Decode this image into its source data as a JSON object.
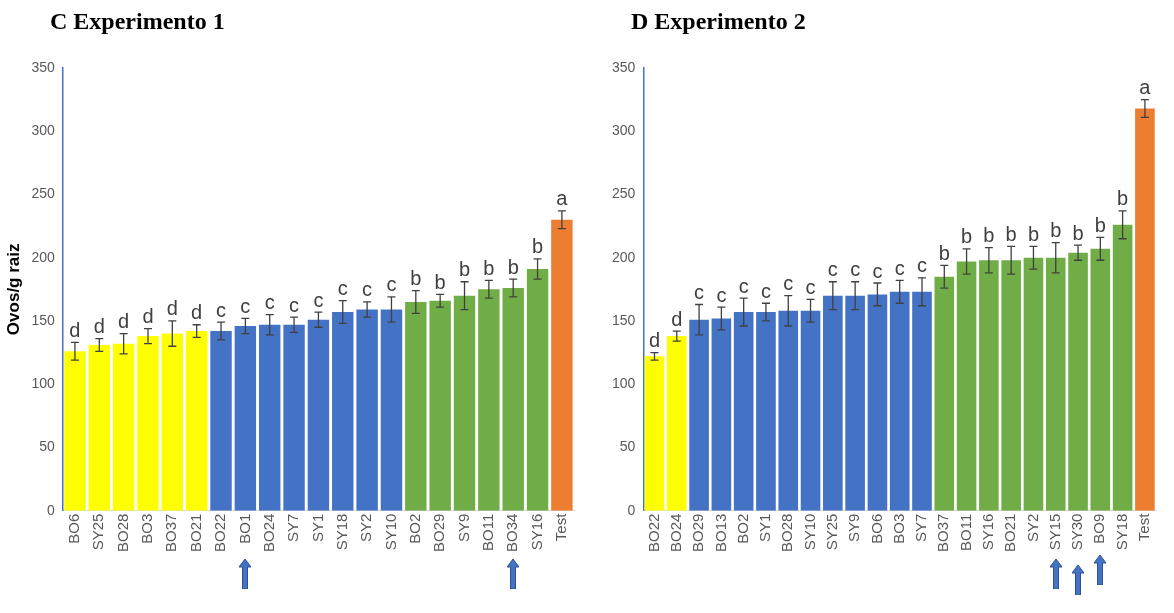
{
  "chart_data": [
    {
      "type": "bar",
      "title": "C Experimento 1",
      "ylabel": "Ovos/g raiz",
      "categories": [
        "BO6",
        "SY25",
        "BO28",
        "BO3",
        "BO37",
        "BO21",
        "BO22",
        "BO1",
        "BO24",
        "SY7",
        "SY1",
        "SY18",
        "SY2",
        "SY10",
        "BO2",
        "BO29",
        "SY9",
        "BO11",
        "BO34",
        "SY16",
        "Test"
      ],
      "values": [
        126,
        131,
        132,
        138,
        140,
        142,
        142,
        146,
        147,
        147,
        151,
        157,
        159,
        159,
        165,
        166,
        170,
        175,
        176,
        191,
        230
      ],
      "errors": [
        7,
        5,
        8,
        6,
        10,
        5,
        7,
        6,
        8,
        6,
        6,
        9,
        6,
        10,
        9,
        5,
        11,
        7,
        7,
        8,
        7
      ],
      "colors": [
        "#ffff00",
        "#ffff00",
        "#ffff00",
        "#ffff00",
        "#ffff00",
        "#ffff00",
        "#4472c4",
        "#4472c4",
        "#4472c4",
        "#4472c4",
        "#4472c4",
        "#4472c4",
        "#4472c4",
        "#4472c4",
        "#70ad47",
        "#70ad47",
        "#70ad47",
        "#70ad47",
        "#70ad47",
        "#70ad47",
        "#ed7d31"
      ],
      "ylim": [
        0,
        350
      ],
      "yticks": [
        0,
        50,
        100,
        150,
        200,
        250,
        300,
        350
      ],
      "annotations": [
        {
          "text": "d",
          "x": "BO6",
          "y": 133
        },
        {
          "text": "d",
          "x": "SY25",
          "y": 136
        },
        {
          "text": "d",
          "x": "BO28",
          "y": 140
        },
        {
          "text": "d",
          "x": "BO3",
          "y": 144
        },
        {
          "text": "d",
          "x": "BO37",
          "y": 150
        },
        {
          "text": "d",
          "x": "BO21",
          "y": 147
        },
        {
          "text": "c",
          "x": "BO22",
          "y": 149
        },
        {
          "text": "c",
          "x": "BO1",
          "y": 152
        },
        {
          "text": "c",
          "x": "BO24",
          "y": 155
        },
        {
          "text": "c",
          "x": "SY7",
          "y": 153
        },
        {
          "text": "c",
          "x": "SY1",
          "y": 157
        },
        {
          "text": "c",
          "x": "SY18",
          "y": 166
        },
        {
          "text": "c",
          "x": "SY2",
          "y": 165
        },
        {
          "text": "c",
          "x": "SY10",
          "y": 169
        },
        {
          "text": "b",
          "x": "BO2",
          "y": 174
        },
        {
          "text": "b",
          "x": "BO29",
          "y": 171
        },
        {
          "text": "b",
          "x": "SY9",
          "y": 181
        },
        {
          "text": "b",
          "x": "BO11",
          "y": 182
        },
        {
          "text": "b",
          "x": "BO34",
          "y": 183
        },
        {
          "text": "b",
          "x": "SY16",
          "y": 199
        },
        {
          "text": "a",
          "x": "Test",
          "y": 237
        }
      ]
    },
    {
      "type": "bar",
      "title": "D Experimento 2",
      "categories": [
        "BO22",
        "BO24",
        "BO29",
        "BO13",
        "BO2",
        "SY1",
        "BO28",
        "SY10",
        "SY25",
        "SY9",
        "BO6",
        "BO3",
        "SY7",
        "BO37",
        "BO11",
        "SY16",
        "BO21",
        "SY2",
        "SY15",
        "SY30",
        "BO9",
        "SY18",
        "Test"
      ],
      "values": [
        122,
        138,
        151,
        152,
        157,
        157,
        158,
        158,
        170,
        170,
        171,
        173,
        173,
        185,
        197,
        198,
        198,
        200,
        200,
        204,
        207,
        226,
        318
      ],
      "errors": [
        3,
        4,
        12,
        9,
        11,
        7,
        12,
        9,
        11,
        11,
        9,
        9,
        11,
        9,
        10,
        10,
        11,
        9,
        12,
        6,
        9,
        11,
        7
      ],
      "colors": [
        "#ffff00",
        "#ffff00",
        "#4472c4",
        "#4472c4",
        "#4472c4",
        "#4472c4",
        "#4472c4",
        "#4472c4",
        "#4472c4",
        "#4472c4",
        "#4472c4",
        "#4472c4",
        "#4472c4",
        "#70ad47",
        "#70ad47",
        "#70ad47",
        "#70ad47",
        "#70ad47",
        "#70ad47",
        "#70ad47",
        "#70ad47",
        "#70ad47",
        "#ed7d31"
      ],
      "ylim": [
        0,
        350
      ],
      "yticks": [
        0,
        50,
        100,
        150,
        200,
        250,
        300,
        350
      ],
      "annotations": [
        {
          "text": "d",
          "x": "BO22",
          "y": 125
        },
        {
          "text": "d",
          "x": "BO24",
          "y": 142
        },
        {
          "text": "c",
          "x": "BO29",
          "y": 163
        },
        {
          "text": "c",
          "x": "BO13",
          "y": 161
        },
        {
          "text": "c",
          "x": "BO2",
          "y": 168
        },
        {
          "text": "c",
          "x": "SY1",
          "y": 164
        },
        {
          "text": "c",
          "x": "BO28",
          "y": 170
        },
        {
          "text": "c",
          "x": "SY10",
          "y": 167
        },
        {
          "text": "c",
          "x": "SY25",
          "y": 181
        },
        {
          "text": "c",
          "x": "SY9",
          "y": 181
        },
        {
          "text": "c",
          "x": "BO6",
          "y": 180
        },
        {
          "text": "c",
          "x": "BO3",
          "y": 182
        },
        {
          "text": "c",
          "x": "SY7",
          "y": 184
        },
        {
          "text": "b",
          "x": "BO37",
          "y": 194
        },
        {
          "text": "b",
          "x": "BO11",
          "y": 207
        },
        {
          "text": "b",
          "x": "SY16",
          "y": 208
        },
        {
          "text": "b",
          "x": "BO21",
          "y": 209
        },
        {
          "text": "b",
          "x": "SY2",
          "y": 209
        },
        {
          "text": "b",
          "x": "SY15",
          "y": 212
        },
        {
          "text": "b",
          "x": "SY30",
          "y": 210
        },
        {
          "text": "b",
          "x": "BO9",
          "y": 216
        },
        {
          "text": "b",
          "x": "SY18",
          "y": 237
        },
        {
          "text": "a",
          "x": "Test",
          "y": 325
        }
      ]
    }
  ]
}
